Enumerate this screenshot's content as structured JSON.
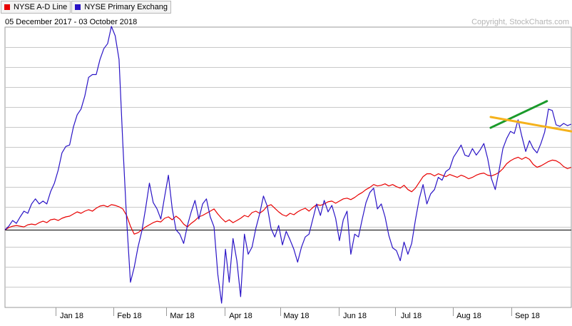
{
  "header": {
    "date_range": "05 December 2017 - 03 October 2018",
    "copyright": "Copyright, StockCharts.com"
  },
  "legend": {
    "items": [
      {
        "label": "NYSE A-D Line",
        "color": "#e80000"
      },
      {
        "label": "NYSE Primary Exchang",
        "color": "#2a14c6"
      }
    ]
  },
  "colors": {
    "ad_line": "#e80000",
    "primary_exchange": "#2a14c6",
    "trend_green": "#1a9a2a",
    "trend_orange": "#f5b21c",
    "grid": "#c8c8c8",
    "zero_line": "#000000"
  },
  "chart_data": {
    "type": "line",
    "x_range": [
      "2017-12-05",
      "2018-10-03"
    ],
    "x_tick_labels": [
      "Jan 18",
      "Feb 18",
      "Mar 18",
      "Apr 18",
      "May 18",
      "Jun 18",
      "Jul 18",
      "Aug 18",
      "Sep 18"
    ],
    "x_tick_dates": [
      "2018-01-01",
      "2018-02-01",
      "2018-03-01",
      "2018-04-01",
      "2018-05-01",
      "2018-06-01",
      "2018-07-01",
      "2018-08-01",
      "2018-09-01"
    ],
    "y_axis_labels": "none",
    "grid": "horizontal",
    "baseline": "zero line",
    "series": [
      {
        "name": "NYSE A-D Line",
        "color": "#e80000",
        "values": [
          0,
          0.3,
          0.5,
          0.6,
          0.5,
          0.4,
          0.7,
          0.8,
          0.7,
          1.0,
          1.2,
          1.0,
          1.4,
          1.5,
          1.3,
          1.6,
          1.8,
          1.9,
          2.2,
          2.5,
          2.3,
          2.6,
          2.8,
          2.6,
          3.0,
          3.3,
          3.4,
          3.2,
          3.5,
          3.4,
          3.2,
          2.9,
          2.0,
          0.5,
          -0.6,
          -0.4,
          0.0,
          0.4,
          0.7,
          1.0,
          1.2,
          1.1,
          1.6,
          1.8,
          1.4,
          1.9,
          1.5,
          0.8,
          0.4,
          0.9,
          1.3,
          1.8,
          2.0,
          2.3,
          2.6,
          2.9,
          2.2,
          1.6,
          1.1,
          1.4,
          1.0,
          1.3,
          1.6,
          2.0,
          1.8,
          2.4,
          2.6,
          2.3,
          2.7,
          3.3,
          3.5,
          3.0,
          2.5,
          2.1,
          1.9,
          2.3,
          2.1,
          2.5,
          2.8,
          3.0,
          2.6,
          3.1,
          3.5,
          3.4,
          3.6,
          3.9,
          4.0,
          3.7,
          4.0,
          4.3,
          4.4,
          4.2,
          4.5,
          4.9,
          5.2,
          5.6,
          5.9,
          6.3,
          6.1,
          6.2,
          6.4,
          6.1,
          6.3,
          6.0,
          5.8,
          6.2,
          5.6,
          5.3,
          5.8,
          6.6,
          7.4,
          7.8,
          7.8,
          7.5,
          7.8,
          7.6,
          7.4,
          7.7,
          7.5,
          7.3,
          7.6,
          7.4,
          7.1,
          7.3,
          7.6,
          7.8,
          7.9,
          7.6,
          7.5,
          7.7,
          8.0,
          8.5,
          9.2,
          9.6,
          9.9,
          10.1,
          9.8,
          10.1,
          9.8,
          9.1,
          8.7,
          8.9,
          9.2,
          9.5,
          9.7,
          9.6,
          9.3,
          8.8,
          8.5,
          8.7
        ]
      },
      {
        "name": "NYSE Primary Exchang",
        "color": "#2a14c6",
        "values": [
          0,
          0.5,
          1.3,
          0.9,
          1.8,
          2.6,
          2.3,
          3.6,
          4.3,
          3.6,
          4.0,
          3.6,
          5.3,
          6.5,
          8.3,
          10.7,
          11.6,
          11.8,
          14.3,
          16.0,
          16.8,
          18.6,
          21.2,
          21.6,
          21.6,
          23.7,
          25.2,
          25.9,
          28.3,
          27.0,
          23.7,
          12.0,
          1.5,
          -7.3,
          -5.2,
          -2.4,
          -0.2,
          3.0,
          6.5,
          3.8,
          2.9,
          1.5,
          4.6,
          7.6,
          2.9,
          0.0,
          -0.6,
          -1.9,
          0.6,
          2.5,
          4.1,
          1.5,
          3.6,
          4.3,
          1.8,
          0.4,
          -6.2,
          -10.2,
          -2.7,
          -7.3,
          -1.2,
          -4.3,
          -9.3,
          -0.6,
          -3.4,
          -2.4,
          0.2,
          2.2,
          4.7,
          3.3,
          0.2,
          -1.0,
          0.6,
          -2.1,
          -0.2,
          -1.4,
          -2.7,
          -4.5,
          -2.4,
          -1.0,
          -0.6,
          1.5,
          3.6,
          2.0,
          4.1,
          2.5,
          3.4,
          1.6,
          -1.5,
          1.4,
          2.6,
          -3.4,
          -0.6,
          -1.0,
          1.5,
          3.8,
          5.2,
          5.8,
          2.9,
          3.6,
          1.8,
          -0.8,
          -2.5,
          -2.9,
          -4.3,
          -1.7,
          -3.4,
          -1.9,
          1.4,
          4.3,
          6.3,
          3.6,
          5.0,
          5.6,
          7.3,
          6.9,
          8.1,
          8.5,
          10.1,
          10.9,
          11.8,
          10.4,
          10.2,
          11.3,
          10.4,
          11.1,
          12.0,
          9.9,
          7.1,
          5.6,
          8.3,
          11.3,
          12.7,
          13.7,
          13.4,
          15.3,
          13.0,
          10.9,
          12.4,
          11.3,
          10.7,
          12.0,
          13.6,
          16.8,
          16.6,
          14.6,
          14.4,
          14.8,
          14.5,
          14.7
        ]
      }
    ],
    "annotations": [
      {
        "type": "trendline",
        "color": "#1a9a2a",
        "from": [
          "2018-08-21",
          14.2
        ],
        "to": [
          "2018-09-20",
          17.9
        ]
      },
      {
        "type": "trendline",
        "color": "#f5b21c",
        "from": [
          "2018-08-21",
          15.7
        ],
        "to": [
          "2018-10-03",
          13.7
        ]
      }
    ]
  }
}
